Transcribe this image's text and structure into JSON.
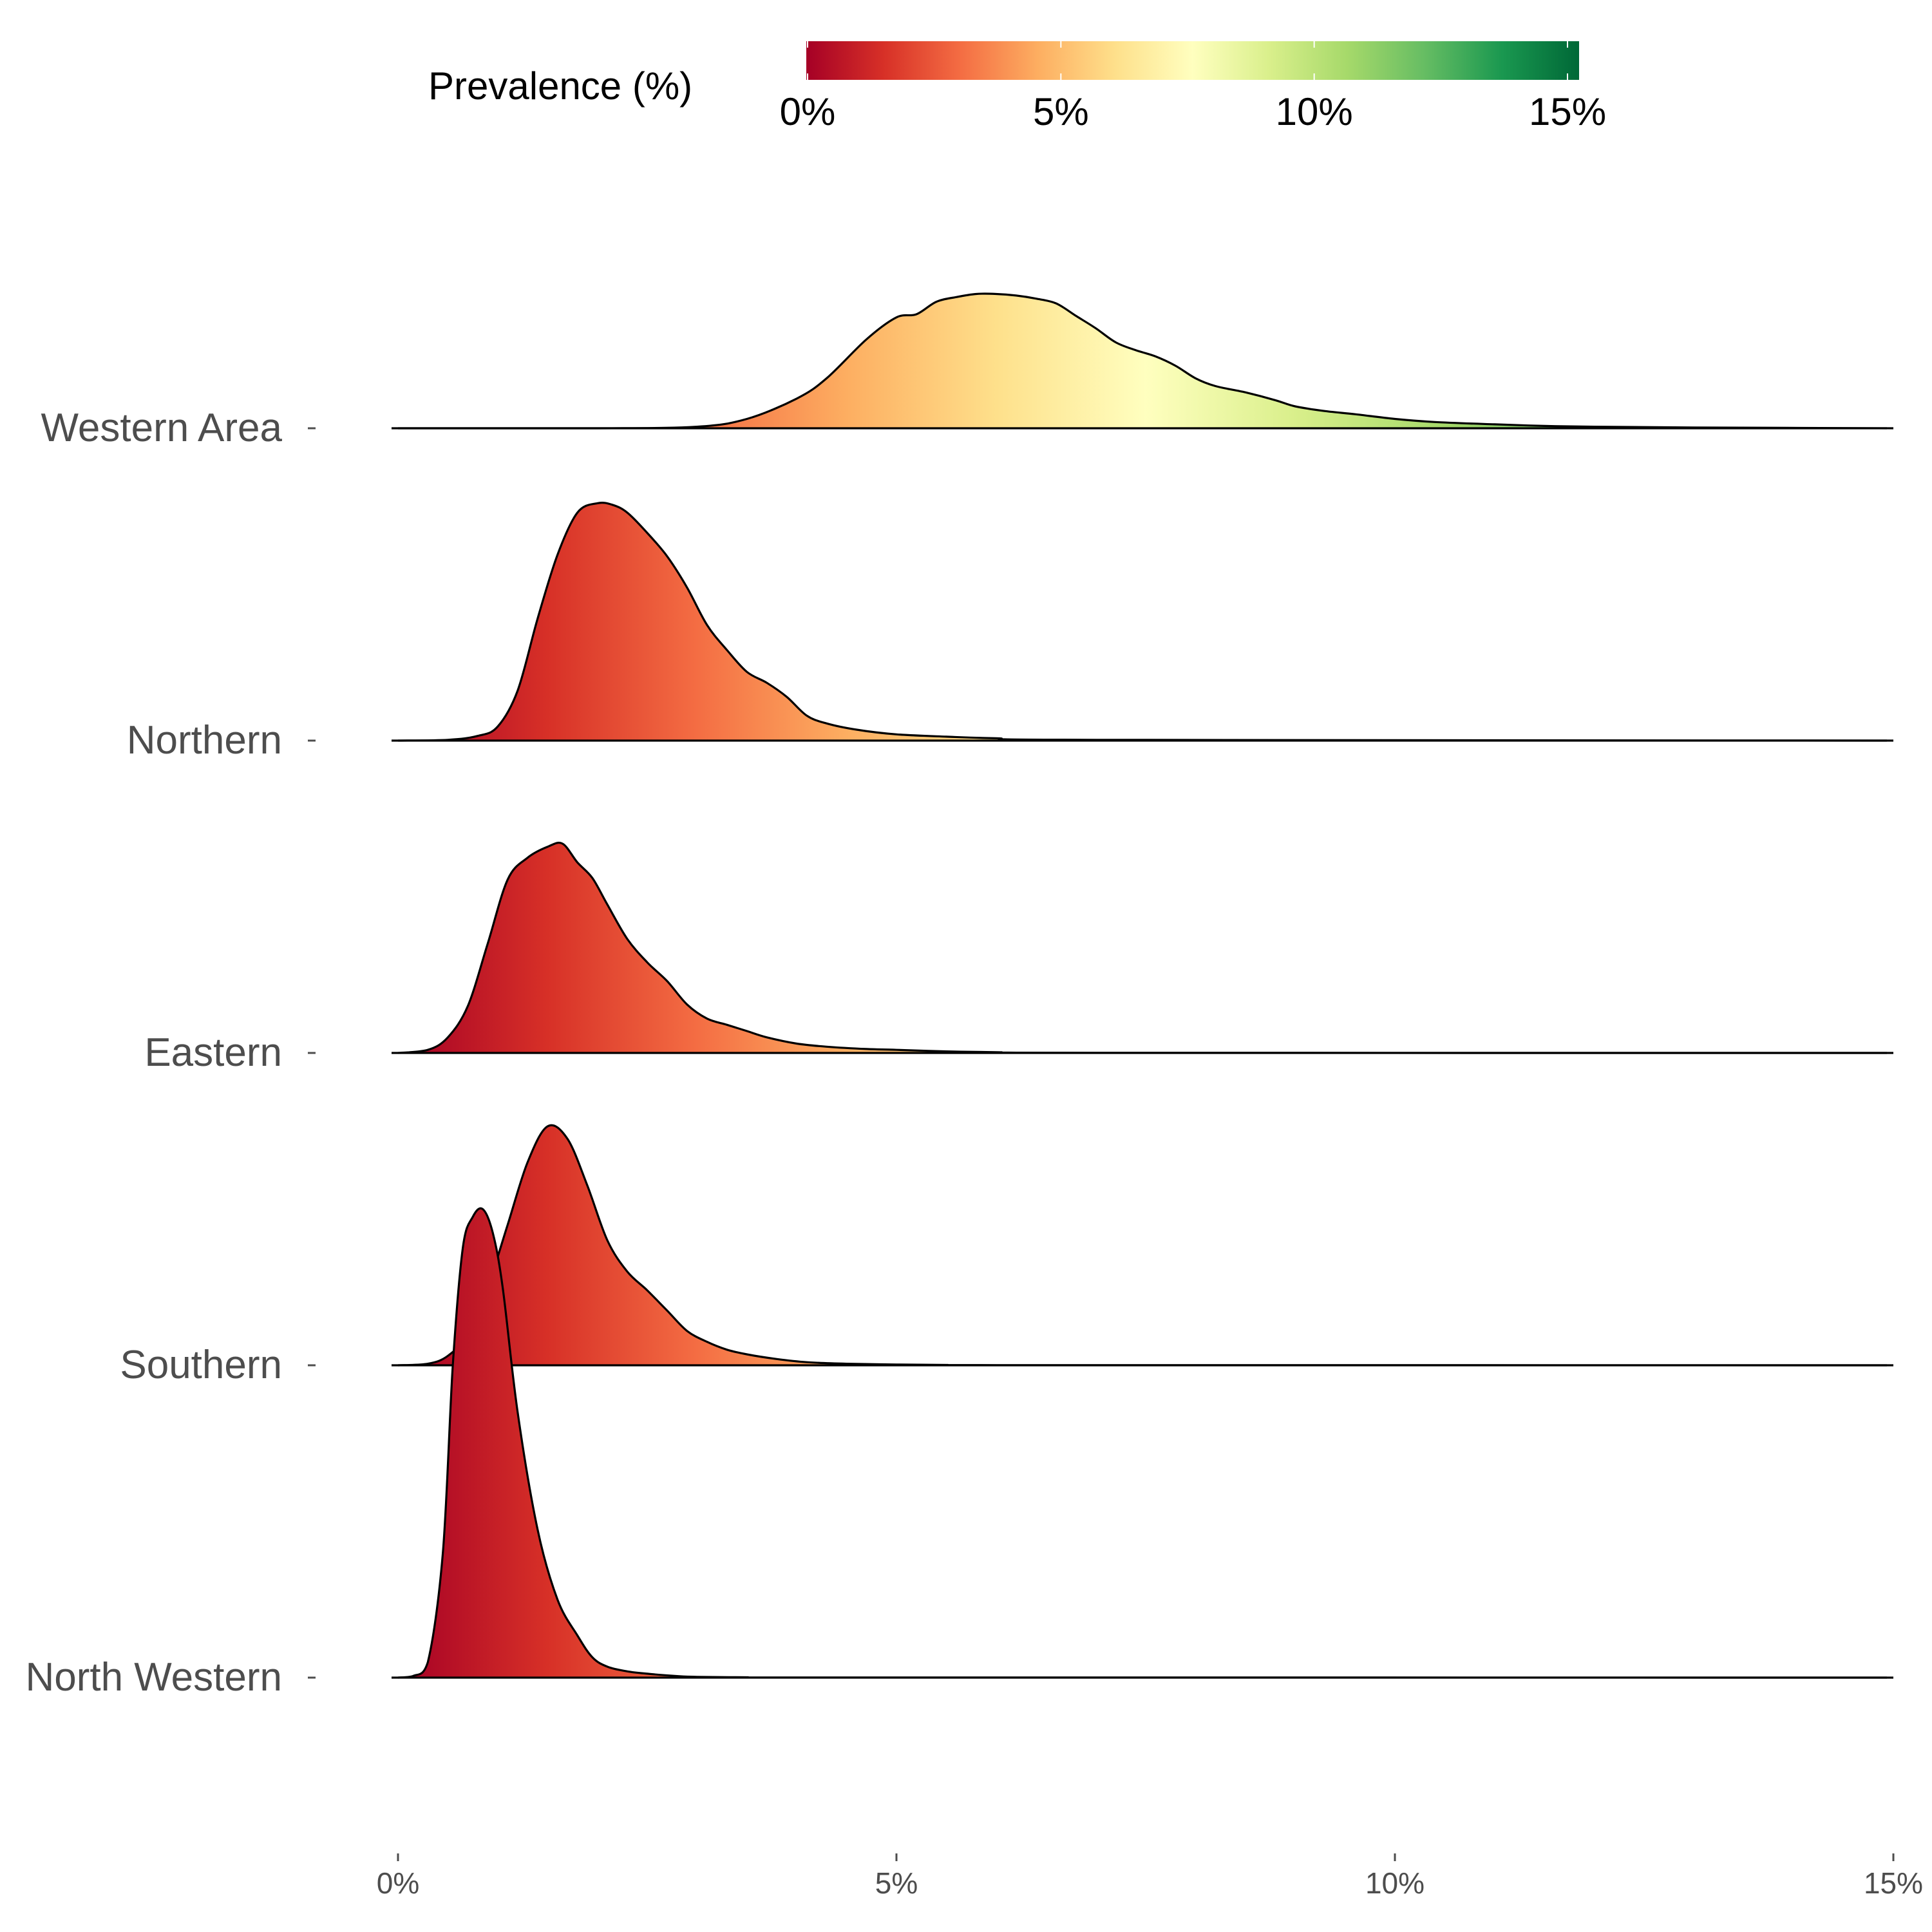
{
  "chart_data": {
    "type": "ridgeline",
    "title": "",
    "xlabel": "",
    "ylabel": "",
    "xlim": [
      0,
      15
    ],
    "x_ticks": [
      0,
      5,
      10,
      15
    ],
    "x_tick_labels": [
      "0%",
      "5%",
      "10%",
      "15%"
    ],
    "legend": {
      "title": "Prevalence (%)",
      "position": "top",
      "range": [
        0,
        15
      ],
      "ticks": [
        0,
        5,
        10,
        15
      ],
      "tick_labels": [
        "0%",
        "5%",
        "10%",
        "15%"
      ],
      "colors": [
        "#a50026",
        "#d73027",
        "#f46d43",
        "#fdae61",
        "#fee08b",
        "#ffffbf",
        "#d9ef8b",
        "#a6d96a",
        "#66bd63",
        "#1a9850",
        "#006837"
      ]
    },
    "y_unit_height": 1.0,
    "series": [
      {
        "name": "Western Area",
        "x": [
          0,
          2,
          3.0,
          3.5,
          4.0,
          4.3,
          4.7,
          5.0,
          5.2,
          5.4,
          5.6,
          5.8,
          6.0,
          6.2,
          6.4,
          6.6,
          6.8,
          7.0,
          7.2,
          7.4,
          7.6,
          7.8,
          8.0,
          8.2,
          8.5,
          8.8,
          9.0,
          9.3,
          9.6,
          10.0,
          10.4,
          11.0,
          11.5,
          12.0,
          13.0,
          15.0
        ],
        "density": [
          0,
          0,
          0.01,
          0.06,
          0.19,
          0.32,
          0.57,
          0.71,
          0.73,
          0.81,
          0.84,
          0.86,
          0.86,
          0.85,
          0.83,
          0.8,
          0.72,
          0.64,
          0.55,
          0.5,
          0.46,
          0.4,
          0.32,
          0.27,
          0.23,
          0.18,
          0.14,
          0.11,
          0.09,
          0.06,
          0.04,
          0.025,
          0.015,
          0.01,
          0.005,
          0
        ]
      },
      {
        "name": "Northern",
        "x": [
          0,
          0.5,
          0.8,
          1.0,
          1.2,
          1.4,
          1.6,
          1.8,
          2.0,
          2.15,
          2.3,
          2.5,
          2.7,
          2.9,
          3.1,
          3.3,
          3.5,
          3.7,
          3.9,
          4.1,
          4.3,
          4.6,
          5.0,
          5.5,
          6.0,
          7.0,
          15.0
        ],
        "density": [
          0,
          0.005,
          0.03,
          0.09,
          0.32,
          0.78,
          1.19,
          1.46,
          1.52,
          1.51,
          1.46,
          1.33,
          1.18,
          0.98,
          0.74,
          0.58,
          0.44,
          0.37,
          0.28,
          0.16,
          0.11,
          0.07,
          0.04,
          0.025,
          0.015,
          0.005,
          0
        ]
      },
      {
        "name": "Eastern",
        "x": [
          0,
          0.3,
          0.5,
          0.7,
          0.9,
          1.1,
          1.3,
          1.5,
          1.65,
          1.8,
          1.95,
          2.1,
          2.3,
          2.5,
          2.7,
          2.9,
          3.1,
          3.3,
          3.5,
          3.7,
          4.0,
          4.3,
          4.7,
          5.0,
          5.5,
          6.0,
          7.0,
          15.0
        ],
        "density": [
          0,
          0.02,
          0.1,
          0.3,
          0.7,
          1.11,
          1.25,
          1.32,
          1.34,
          1.22,
          1.12,
          0.95,
          0.73,
          0.58,
          0.46,
          0.31,
          0.22,
          0.18,
          0.14,
          0.1,
          0.06,
          0.04,
          0.025,
          0.02,
          0.01,
          0.005,
          0.001,
          0
        ]
      },
      {
        "name": "Southern",
        "x": [
          0,
          0.3,
          0.5,
          0.7,
          0.9,
          1.1,
          1.3,
          1.5,
          1.7,
          1.9,
          2.1,
          2.3,
          2.5,
          2.7,
          2.9,
          3.1,
          3.3,
          3.5,
          3.8,
          4.1,
          4.5,
          5.0,
          5.5,
          6.0,
          15.0
        ],
        "density": [
          0,
          0.01,
          0.06,
          0.2,
          0.5,
          0.9,
          1.3,
          1.53,
          1.45,
          1.15,
          0.8,
          0.6,
          0.48,
          0.35,
          0.22,
          0.15,
          0.1,
          0.07,
          0.04,
          0.02,
          0.01,
          0.005,
          0.002,
          0.001,
          0
        ]
      },
      {
        "name": "North Western",
        "x": [
          0,
          0.15,
          0.3,
          0.45,
          0.55,
          0.65,
          0.75,
          0.85,
          0.95,
          1.05,
          1.2,
          1.4,
          1.6,
          1.8,
          1.95,
          2.1,
          2.3,
          2.5,
          2.8,
          3.0,
          3.5,
          4.0,
          15.0
        ],
        "density": [
          0,
          0.01,
          0.1,
          0.8,
          2.0,
          2.75,
          2.95,
          3.0,
          2.85,
          2.5,
          1.7,
          0.95,
          0.5,
          0.27,
          0.13,
          0.07,
          0.04,
          0.025,
          0.01,
          0.005,
          0.002,
          0.001,
          0
        ]
      }
    ]
  }
}
